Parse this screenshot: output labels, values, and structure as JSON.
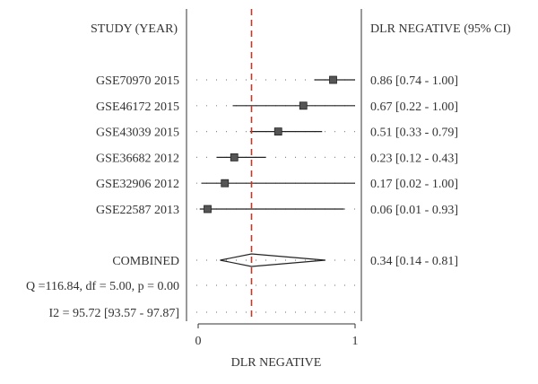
{
  "chart_data": {
    "type": "forest",
    "title": "",
    "left_header": "STUDY (YEAR)",
    "right_header": "DLR NEGATIVE (95% CI)",
    "xlabel": "DLR NEGATIVE",
    "xlim": [
      0,
      1
    ],
    "x_ticks": [
      "0",
      "1"
    ],
    "combined_line": 0.34,
    "studies": [
      {
        "label": "GSE70970 2015",
        "estimate": 0.86,
        "lower": 0.74,
        "upper": 1.0,
        "ci_text": "0.86 [0.74 - 1.00]"
      },
      {
        "label": "GSE46172 2015",
        "estimate": 0.67,
        "lower": 0.22,
        "upper": 1.0,
        "ci_text": "0.67 [0.22 - 1.00]"
      },
      {
        "label": "GSE43039 2015",
        "estimate": 0.51,
        "lower": 0.33,
        "upper": 0.79,
        "ci_text": "0.51 [0.33 - 0.79]"
      },
      {
        "label": "GSE36682 2012",
        "estimate": 0.23,
        "lower": 0.12,
        "upper": 0.43,
        "ci_text": "0.23 [0.12 - 0.43]"
      },
      {
        "label": "GSE32906 2012",
        "estimate": 0.17,
        "lower": 0.02,
        "upper": 1.0,
        "ci_text": "0.17 [0.02 - 1.00]"
      },
      {
        "label": "GSE22587 2013",
        "estimate": 0.06,
        "lower": 0.01,
        "upper": 0.93,
        "ci_text": "0.06 [0.01 - 0.93]"
      }
    ],
    "combined": {
      "label": "COMBINED",
      "estimate": 0.34,
      "lower": 0.14,
      "upper": 0.81,
      "ci_text": "0.34 [0.14 - 0.81]"
    },
    "heterogeneity": [
      "Q =116.84, df = 5.00, p = 0.00",
      "I2 = 95.72 [93.57 - 97.87]"
    ],
    "colors": {
      "reference_line": "#c0392b",
      "text": "#333333",
      "marker": "#555555"
    }
  }
}
